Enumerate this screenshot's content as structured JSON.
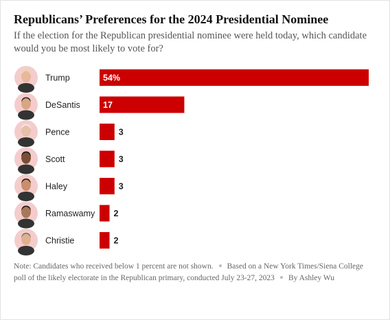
{
  "chart_data": {
    "type": "bar",
    "title": "Republicans’ Preferences for the 2024 Presidential Nominee",
    "subtitle": "If the election for the Republican presidential nominee were held today, which candidate would you be most likely to vote for?",
    "categories": [
      "Trump",
      "DeSantis",
      "Pence",
      "Scott",
      "Haley",
      "Ramaswamy",
      "Christie"
    ],
    "values": [
      54,
      17,
      3,
      3,
      3,
      2,
      2
    ],
    "value_labels": [
      "54%",
      "17",
      "3",
      "3",
      "3",
      "2",
      "2"
    ],
    "color": "#cc0000",
    "notes": [
      "Note: Candidates who received below 1 percent are not shown.",
      "Based on a New York Times/Siena College poll of the likely electorate in the Republican primary, conducted July 23-27, 2023",
      "By Ashley Wu"
    ]
  }
}
